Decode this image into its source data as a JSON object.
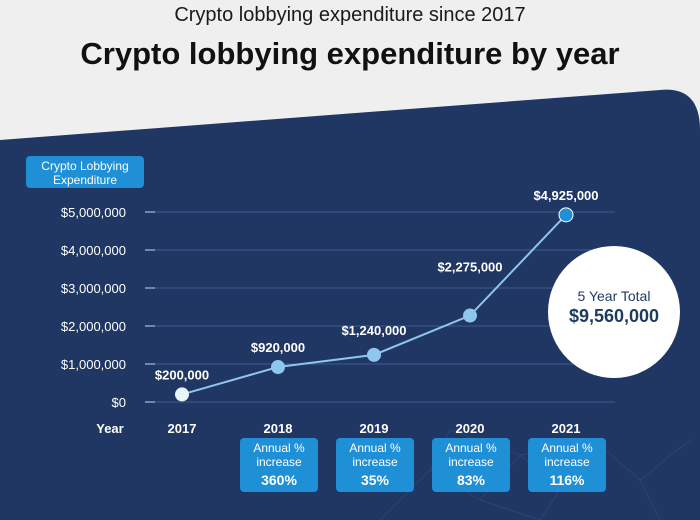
{
  "header": {
    "subtitle": "Crypto lobbying expenditure since 2017",
    "title": "Crypto lobbying expenditure by year"
  },
  "y_axis_label": "Crypto Lobbying Expenditure",
  "chart_data": {
    "type": "line",
    "title": "Crypto lobbying expenditure by year",
    "xlabel": "Year",
    "ylabel": "Crypto Lobbying Expenditure",
    "categories": [
      "2017",
      "2018",
      "2019",
      "2020",
      "2021"
    ],
    "values": [
      200000,
      920000,
      1240000,
      2275000,
      4925000
    ],
    "data_labels": [
      "$200,000",
      "$920,000",
      "$1,240,000",
      "$2,275,000",
      "$4,925,000"
    ],
    "ylim": [
      0,
      5000000
    ],
    "yticks": [
      0,
      1000000,
      2000000,
      3000000,
      4000000,
      5000000
    ],
    "ytick_labels": [
      "$0",
      "$1,000,000",
      "$2,000,000",
      "$3,000,000",
      "$4,000,000",
      "$5,000,000"
    ],
    "grid": true
  },
  "total": {
    "label": "5 Year Total",
    "value": "$9,560,000"
  },
  "increases": [
    {
      "label": "Annual % increase",
      "value": "360%"
    },
    {
      "label": "Annual % increase",
      "value": "35%"
    },
    {
      "label": "Annual % increase",
      "value": "83%"
    },
    {
      "label": "Annual % increase",
      "value": "116%"
    }
  ],
  "colors": {
    "panel": "#203764",
    "accent": "#1f8fd6",
    "line": "#8ec6ee",
    "point_first": "#e8f4fc",
    "point_last": "#1f8fd6"
  }
}
